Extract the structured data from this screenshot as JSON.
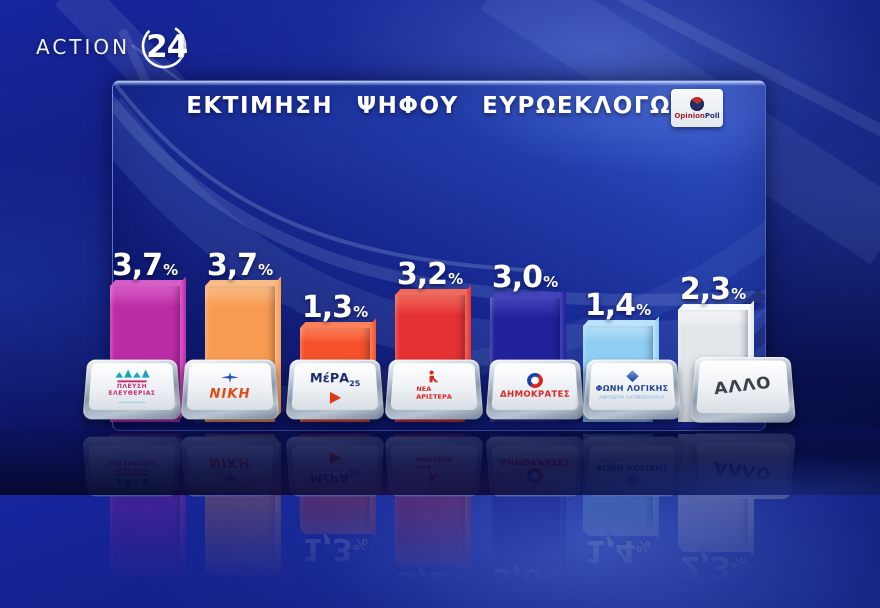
{
  "channel": {
    "name": "ACTION",
    "number": "24"
  },
  "header": {
    "title": "ΕΚΤΙΜΗΣΗ ΨΗΦΟΥ ΕΥΡΩΕΚΛΟΓΩΝ",
    "pollster": {
      "name": "OpinionPoll",
      "part1": "Opinion",
      "part2": "Poll"
    }
  },
  "chart_data": {
    "type": "bar",
    "title": "ΕΚΤΙΜΗΣΗ ΨΗΦΟΥ ΕΥΡΩΕΚΛΟΓΩΝ",
    "source": "OpinionPoll",
    "unit": "%",
    "decimal_separator": ",",
    "categories": [
      "ΠΛΕΥΣΗ ΕΛΕΥΘΕΡΙΑΣ",
      "ΝΙΚΗ",
      "ΜέΡΑ25",
      "ΝΕΑ ΑΡΙΣΤΕΡΑ",
      "ΔΗΜΟΚΡΑΤΕΣ",
      "ΦΩΝΗ ΛΟΓΙΚΗΣ",
      "ΑΛΛΟ"
    ],
    "values": [
      3.7,
      3.7,
      1.3,
      3.2,
      3.0,
      1.4,
      2.3
    ],
    "value_labels": [
      "3,7",
      "3,7",
      "1,3",
      "3,2",
      "3,0",
      "1,4",
      "2,3"
    ],
    "bar_colors": [
      "#bb2da6",
      "#f89b52",
      "#f4512b",
      "#e53131",
      "#22219a",
      "#8fcef2",
      "#e3e7ec"
    ],
    "bar_top_colors": [
      "#d95cc7",
      "#fbbd85",
      "#ff8159",
      "#f26a5c",
      "#4343bb",
      "#bce3fb",
      "#f8fafc"
    ],
    "ylim": [
      0,
      4
    ],
    "grid": false,
    "legend_position": "none"
  },
  "parties": [
    {
      "name": "ΠΛΕΥΣΗ ΕΛΕΥΘΕΡΙΑΣ",
      "line1": "ΠΛΕΥΣΗ",
      "line2": "ΕΛΕΥΘΕΡΙΑΣ",
      "text_color": "#c22973",
      "icon": "sails-icon",
      "icon_color": "#17a3bc"
    },
    {
      "name": "ΝΙΚΗ",
      "label": "ΝΙΚΗ",
      "text_color": "#dc4a14",
      "icon": "propeller-icon",
      "icon_color": "#2a4fae"
    },
    {
      "name": "ΜέΡΑ25",
      "label": "ΜέΡΑ",
      "suffix": "25",
      "text_color": "#1c2a6e",
      "icon": "arrow-icon",
      "icon_color": "#e23418"
    },
    {
      "name": "ΝΕΑ ΑΡΙΣΤΕΡΑ",
      "line1": "ΝΕΑ",
      "line2": "ΑΡΙΣΤΕΡΑ",
      "text_color": "#d6271f",
      "icon": "figure-icon",
      "icon_color": "#d6271f"
    },
    {
      "name": "ΔΗΜΟΚΡΑΤΕΣ",
      "label": "ΔΗΜΟΚΡΑΤΕΣ",
      "text_color": "#d6271f",
      "icon": "ring-icon",
      "icon_color_blue": "#1b3fae",
      "icon_color_red": "#d6271f"
    },
    {
      "name": "ΦΩΝΗ ΛΟΓΙΚΗΣ",
      "label": "ΦΩΝΗ ΛΟΓΙΚΗΣ",
      "sublabel": "ΑΦΡΟΔΙΤΗ ΛΑΤΙΝΟΠΟΥΛΟΥ",
      "text_color": "#21418f",
      "sub_color": "#79aede",
      "icon": "diamond-icon",
      "icon_color": "#2e6cc8"
    },
    {
      "name": "ΑΛΛΟ",
      "label": "ΑΛΛΟ",
      "text_color": "#3a4048"
    }
  ]
}
